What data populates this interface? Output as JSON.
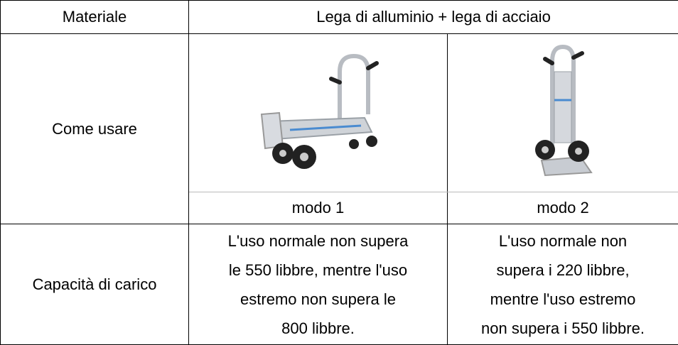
{
  "table": {
    "material": {
      "label": "Materiale",
      "value": "Lega di alluminio + lega di acciaio"
    },
    "usage": {
      "label": "Come usare",
      "modes": [
        "modo 1",
        "modo 2"
      ]
    },
    "capacity": {
      "label": "Capacità di carico",
      "modes": [
        [
          "L'uso normale non supera",
          "le 550 libbre, mentre l'uso",
          "estremo non supera le",
          "800 libbre."
        ],
        [
          "L'uso normale non",
          "supera i 220 libbre,",
          "mentre l'uso estremo",
          "non supera i 550 libbre."
        ]
      ]
    }
  }
}
